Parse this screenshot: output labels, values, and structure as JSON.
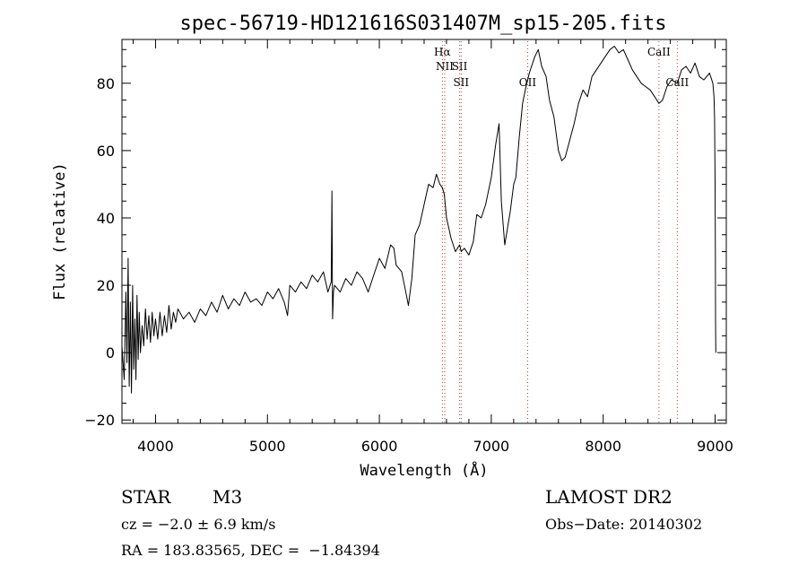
{
  "chart_data": {
    "type": "line",
    "title": "spec-56719-HD121616S031407M_sp15-205.fits",
    "xlabel": "Wavelength (Å)",
    "ylabel": "Flux (relative)",
    "xlim": [
      3700,
      9100
    ],
    "ylim": [
      -21,
      93
    ],
    "xticks": [
      4000,
      5000,
      6000,
      7000,
      8000,
      9000
    ],
    "xtick_labels": [
      "4000",
      "5000",
      "6000",
      "7000",
      "8000",
      "9000"
    ],
    "yticks": [
      -20,
      0,
      20,
      40,
      60,
      80
    ],
    "ytick_labels": [
      "−20",
      "0",
      "20",
      "40",
      "60",
      "80"
    ],
    "grid": false,
    "line_color": "#000000",
    "marker_color": "#cc3333",
    "lines": [
      {
        "label": "Hα",
        "x": 6563,
        "row": 0
      },
      {
        "label": "NII",
        "x": 6584,
        "row": 1
      },
      {
        "label": "SII",
        "x": 6717,
        "row": 1
      },
      {
        "label": "SII",
        "x": 6731,
        "row": 2
      },
      {
        "label": "OII",
        "x": 7325,
        "row": 2
      },
      {
        "label": "CaII",
        "x": 8498,
        "row": 0
      },
      {
        "label": "CaII",
        "x": 8662,
        "row": 2
      }
    ],
    "spectrum": [
      [
        3700,
        2
      ],
      [
        3720,
        -8
      ],
      [
        3735,
        18
      ],
      [
        3745,
        -3
      ],
      [
        3755,
        28
      ],
      [
        3765,
        -10
      ],
      [
        3775,
        15
      ],
      [
        3785,
        -12
      ],
      [
        3795,
        20
      ],
      [
        3805,
        -5
      ],
      [
        3815,
        10
      ],
      [
        3825,
        -8
      ],
      [
        3835,
        17
      ],
      [
        3845,
        -2
      ],
      [
        3855,
        12
      ],
      [
        3865,
        0
      ],
      [
        3880,
        8
      ],
      [
        3895,
        2
      ],
      [
        3910,
        13
      ],
      [
        3925,
        4
      ],
      [
        3940,
        11
      ],
      [
        3955,
        3
      ],
      [
        3970,
        12
      ],
      [
        3985,
        5
      ],
      [
        4000,
        10
      ],
      [
        4020,
        4
      ],
      [
        4040,
        12
      ],
      [
        4060,
        5
      ],
      [
        4080,
        11
      ],
      [
        4100,
        6
      ],
      [
        4120,
        14
      ],
      [
        4140,
        7
      ],
      [
        4160,
        12
      ],
      [
        4180,
        9
      ],
      [
        4200,
        13
      ],
      [
        4250,
        10
      ],
      [
        4300,
        12
      ],
      [
        4350,
        9
      ],
      [
        4400,
        13
      ],
      [
        4450,
        11
      ],
      [
        4500,
        15
      ],
      [
        4550,
        12
      ],
      [
        4600,
        17
      ],
      [
        4650,
        13
      ],
      [
        4700,
        16
      ],
      [
        4750,
        14
      ],
      [
        4800,
        18
      ],
      [
        4850,
        15
      ],
      [
        4900,
        16
      ],
      [
        4950,
        14
      ],
      [
        5000,
        18
      ],
      [
        5050,
        16
      ],
      [
        5100,
        19
      ],
      [
        5150,
        15
      ],
      [
        5180,
        11
      ],
      [
        5200,
        20
      ],
      [
        5250,
        18
      ],
      [
        5300,
        21
      ],
      [
        5350,
        19
      ],
      [
        5400,
        23
      ],
      [
        5450,
        21
      ],
      [
        5500,
        24
      ],
      [
        5540,
        18
      ],
      [
        5570,
        21
      ],
      [
        5576,
        48
      ],
      [
        5582,
        10
      ],
      [
        5590,
        18
      ],
      [
        5600,
        20
      ],
      [
        5650,
        18
      ],
      [
        5700,
        22
      ],
      [
        5750,
        20
      ],
      [
        5800,
        24
      ],
      [
        5850,
        22
      ],
      [
        5900,
        18
      ],
      [
        5950,
        23
      ],
      [
        6000,
        28
      ],
      [
        6050,
        25
      ],
      [
        6100,
        32
      ],
      [
        6130,
        31
      ],
      [
        6150,
        26
      ],
      [
        6200,
        24
      ],
      [
        6230,
        19
      ],
      [
        6260,
        14
      ],
      [
        6290,
        22
      ],
      [
        6320,
        35
      ],
      [
        6360,
        38
      ],
      [
        6400,
        44
      ],
      [
        6440,
        50
      ],
      [
        6480,
        49
      ],
      [
        6510,
        53
      ],
      [
        6540,
        50
      ],
      [
        6563,
        49
      ],
      [
        6580,
        47
      ],
      [
        6600,
        40
      ],
      [
        6640,
        34
      ],
      [
        6680,
        30
      ],
      [
        6717,
        32
      ],
      [
        6731,
        30
      ],
      [
        6760,
        31
      ],
      [
        6800,
        29
      ],
      [
        6840,
        33
      ],
      [
        6870,
        41
      ],
      [
        6910,
        40
      ],
      [
        6950,
        44
      ],
      [
        7000,
        52
      ],
      [
        7040,
        62
      ],
      [
        7070,
        68
      ],
      [
        7090,
        45
      ],
      [
        7120,
        32
      ],
      [
        7140,
        36
      ],
      [
        7170,
        42
      ],
      [
        7200,
        50
      ],
      [
        7220,
        52
      ],
      [
        7250,
        64
      ],
      [
        7280,
        74
      ],
      [
        7310,
        79
      ],
      [
        7340,
        83
      ],
      [
        7360,
        85
      ],
      [
        7390,
        88
      ],
      [
        7420,
        90
      ],
      [
        7450,
        85
      ],
      [
        7490,
        82
      ],
      [
        7520,
        75
      ],
      [
        7560,
        70
      ],
      [
        7600,
        60
      ],
      [
        7630,
        57
      ],
      [
        7660,
        58
      ],
      [
        7700,
        63
      ],
      [
        7740,
        68
      ],
      [
        7780,
        74
      ],
      [
        7820,
        78
      ],
      [
        7860,
        76
      ],
      [
        7900,
        82
      ],
      [
        7940,
        84
      ],
      [
        7980,
        86
      ],
      [
        8020,
        88
      ],
      [
        8060,
        90
      ],
      [
        8100,
        91
      ],
      [
        8140,
        89
      ],
      [
        8180,
        90
      ],
      [
        8220,
        87
      ],
      [
        8260,
        84
      ],
      [
        8300,
        82
      ],
      [
        8340,
        80
      ],
      [
        8380,
        79
      ],
      [
        8420,
        78
      ],
      [
        8460,
        76
      ],
      [
        8498,
        74
      ],
      [
        8530,
        75
      ],
      [
        8570,
        79
      ],
      [
        8610,
        81
      ],
      [
        8662,
        80
      ],
      [
        8700,
        84
      ],
      [
        8740,
        85
      ],
      [
        8780,
        83
      ],
      [
        8820,
        86
      ],
      [
        8860,
        82
      ],
      [
        8900,
        81
      ],
      [
        8950,
        83
      ],
      [
        8980,
        80
      ],
      [
        8990,
        76
      ],
      [
        8995,
        70
      ],
      [
        9000,
        50
      ],
      [
        9002,
        30
      ],
      [
        9004,
        10
      ],
      [
        9006,
        0
      ]
    ]
  },
  "info": {
    "object_class": "STAR",
    "subclass": "M3",
    "survey": "LAMOST DR2",
    "cz": "cz = −2.0 ± 6.9 km/s",
    "obs_date": "Obs−Date: 20140302",
    "coords": "RA = 183.83565, DEC =  −1.84394"
  }
}
